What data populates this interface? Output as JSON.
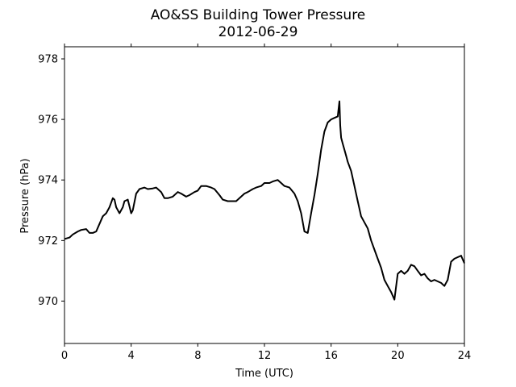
{
  "chart_data": {
    "type": "line",
    "title_line1": "AO&SS Building Tower Pressure",
    "title_line2": "2012-06-29",
    "xlabel": "Time (UTC)",
    "ylabel": "Pressure (hPa)",
    "xlim": [
      0,
      24
    ],
    "ylim": [
      968.6,
      978.4
    ],
    "x_ticks": [
      0,
      4,
      8,
      12,
      16,
      20,
      24
    ],
    "y_ticks": [
      970,
      972,
      974,
      976,
      978
    ],
    "grid": false,
    "line_color": "#000000",
    "series": [
      {
        "x": [
          0,
          0.3,
          0.5,
          0.8,
          1.0,
          1.3,
          1.5,
          1.7,
          1.9,
          2.1,
          2.3,
          2.5,
          2.7,
          2.9,
          3.0,
          3.1,
          3.3,
          3.5,
          3.6,
          3.8,
          4.0,
          4.1,
          4.3,
          4.5,
          4.8,
          5.0,
          5.3,
          5.5,
          5.8,
          6.0,
          6.2,
          6.5,
          6.8,
          7.0,
          7.3,
          7.5,
          7.8,
          8.0,
          8.2,
          8.5,
          8.8,
          9.0,
          9.3,
          9.5,
          9.8,
          10.0,
          10.3,
          10.5,
          10.8,
          11.0,
          11.3,
          11.5,
          11.8,
          12.0,
          12.3,
          12.5,
          12.8,
          13.0,
          13.2,
          13.5,
          13.8,
          14.0,
          14.2,
          14.4,
          14.6,
          14.8,
          15.0,
          15.2,
          15.4,
          15.6,
          15.8,
          16.0,
          16.2,
          16.4,
          16.5,
          16.55,
          16.6,
          16.7,
          16.8,
          16.9,
          17.0,
          17.2,
          17.4,
          17.6,
          17.8,
          18.0,
          18.2,
          18.4,
          18.6,
          18.8,
          19.0,
          19.2,
          19.4,
          19.6,
          19.8,
          20.0,
          20.2,
          20.4,
          20.6,
          20.8,
          21.0,
          21.2,
          21.4,
          21.6,
          21.8,
          22.0,
          22.2,
          22.4,
          22.6,
          22.8,
          23.0,
          23.2,
          23.4,
          23.6,
          23.8,
          24.0
        ],
        "y": [
          972.05,
          972.1,
          972.2,
          972.3,
          972.35,
          972.38,
          972.25,
          972.25,
          972.3,
          972.55,
          972.8,
          972.9,
          973.1,
          973.4,
          973.35,
          973.1,
          972.9,
          973.1,
          973.3,
          973.35,
          972.9,
          973.0,
          973.55,
          973.7,
          973.75,
          973.7,
          973.72,
          973.75,
          973.6,
          973.4,
          973.4,
          973.45,
          973.6,
          973.55,
          973.45,
          973.5,
          973.6,
          973.65,
          973.8,
          973.8,
          973.75,
          973.7,
          973.5,
          973.35,
          973.3,
          973.3,
          973.3,
          973.4,
          973.55,
          973.6,
          973.7,
          973.75,
          973.8,
          973.9,
          973.9,
          973.95,
          974.0,
          973.9,
          973.8,
          973.75,
          973.55,
          973.3,
          972.9,
          972.3,
          972.25,
          972.9,
          973.5,
          974.2,
          975.0,
          975.6,
          975.9,
          976.0,
          976.05,
          976.1,
          976.6,
          975.8,
          975.4,
          975.2,
          975.0,
          974.8,
          974.6,
          974.3,
          973.8,
          973.3,
          972.8,
          972.6,
          972.4,
          972.0,
          971.7,
          971.4,
          971.1,
          970.7,
          970.5,
          970.3,
          970.05,
          970.9,
          971.0,
          970.9,
          971.0,
          971.2,
          971.15,
          971.0,
          970.85,
          970.9,
          970.75,
          970.65,
          970.7,
          970.65,
          970.6,
          970.5,
          970.7,
          971.3,
          971.4,
          971.45,
          971.5,
          971.25
        ]
      }
    ]
  }
}
